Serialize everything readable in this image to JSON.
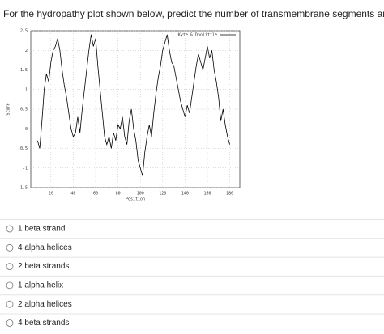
{
  "question": "For the hydropathy plot shown below, predict the number of transmembrane segments and their structure:",
  "chart_data": {
    "type": "line",
    "xlabel": "Position",
    "ylabel": "Score",
    "x": [
      8,
      10,
      12,
      14,
      16,
      18,
      20,
      22,
      24,
      26,
      28,
      30,
      32,
      34,
      36,
      38,
      40,
      42,
      44,
      46,
      48,
      50,
      52,
      54,
      56,
      58,
      60,
      62,
      64,
      66,
      68,
      70,
      72,
      74,
      76,
      78,
      80,
      82,
      84,
      86,
      88,
      90,
      92,
      94,
      96,
      98,
      100,
      102,
      104,
      106,
      108,
      110,
      112,
      114,
      116,
      118,
      120,
      122,
      124,
      126,
      128,
      130,
      132,
      134,
      136,
      138,
      140,
      142,
      144,
      146,
      148,
      150,
      152,
      154,
      156,
      158,
      160,
      162,
      164,
      166,
      168,
      170,
      172,
      174,
      176,
      178,
      180
    ],
    "series": [
      {
        "name": "Kyte & Doolittle",
        "color": "#000000",
        "values": [
          -0.3,
          -0.5,
          0.2,
          1.0,
          1.4,
          1.2,
          1.7,
          2.0,
          2.1,
          2.3,
          2.0,
          1.5,
          1.1,
          0.8,
          0.4,
          0.0,
          -0.2,
          -0.1,
          0.3,
          -0.1,
          0.5,
          1.0,
          1.5,
          2.0,
          2.4,
          2.1,
          2.3,
          1.6,
          1.0,
          0.4,
          -0.2,
          -0.4,
          -0.2,
          -0.5,
          -0.1,
          -0.3,
          0.1,
          0.0,
          0.3,
          -0.2,
          -0.4,
          0.2,
          0.5,
          0.0,
          -0.3,
          -0.8,
          -1.0,
          -1.2,
          -0.6,
          -0.2,
          0.1,
          -0.2,
          0.4,
          0.9,
          1.3,
          1.6,
          2.0,
          2.2,
          2.4,
          2.0,
          1.7,
          1.6,
          1.3,
          1.0,
          0.7,
          0.5,
          0.3,
          0.6,
          0.4,
          0.8,
          1.2,
          1.6,
          1.9,
          1.7,
          1.5,
          1.8,
          2.1,
          1.8,
          2.0,
          1.5,
          1.2,
          0.8,
          0.2,
          0.5,
          0.1,
          -0.2,
          -0.4
        ]
      }
    ],
    "xlim": [
      2,
      189
    ],
    "xticks": [
      20,
      40,
      60,
      80,
      100,
      120,
      140,
      160,
      180
    ],
    "ylim": [
      -1.5,
      2.5
    ],
    "yticks": [
      2.5,
      2,
      1.5,
      1,
      0.5,
      0,
      -0.5,
      -1,
      -1.5
    ],
    "grid": true,
    "legend": "upper right"
  },
  "options": [
    "1 beta strand",
    "4 alpha helices",
    "2 beta strands",
    "1 alpha helix",
    "2 alpha helices",
    "4 beta strands"
  ]
}
